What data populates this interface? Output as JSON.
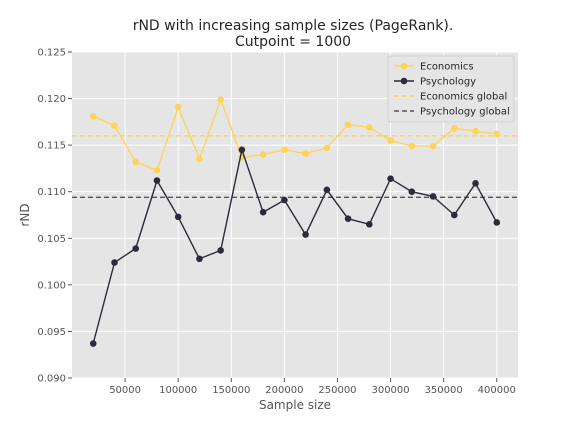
{
  "chart_data": {
    "type": "line",
    "title": "rND with increasing sample sizes (PageRank).",
    "subtitle": "Cutpoint = 1000",
    "xlabel": "Sample size",
    "ylabel": "rND",
    "x": [
      20000,
      40000,
      60000,
      80000,
      100000,
      120000,
      140000,
      160000,
      180000,
      200000,
      220000,
      240000,
      260000,
      280000,
      300000,
      320000,
      340000,
      360000,
      380000,
      400000
    ],
    "xlim": [
      0,
      420000
    ],
    "ylim": [
      0.09,
      0.125
    ],
    "xticks": [
      "50000",
      "100000",
      "150000",
      "200000",
      "250000",
      "300000",
      "350000",
      "400000"
    ],
    "xtick_values": [
      50000,
      100000,
      150000,
      200000,
      250000,
      300000,
      350000,
      400000
    ],
    "yticks": [
      "0.090",
      "0.095",
      "0.100",
      "0.105",
      "0.110",
      "0.115",
      "0.120",
      "0.125"
    ],
    "ytick_values": [
      0.09,
      0.095,
      0.1,
      0.105,
      0.11,
      0.115,
      0.12,
      0.125
    ],
    "grid": true,
    "legend_position": "top-right",
    "series": [
      {
        "name": "Economics",
        "color": "#FFD35A",
        "values": [
          0.1181,
          0.1171,
          0.1132,
          0.1123,
          0.1191,
          0.1135,
          0.1199,
          0.1137,
          0.114,
          0.1145,
          0.1141,
          0.1147,
          0.1172,
          0.1169,
          0.1155,
          0.1149,
          0.1149,
          0.1168,
          0.1165,
          0.1162
        ]
      },
      {
        "name": "Psychology",
        "color": "#2F2A3A",
        "values": [
          0.0937,
          0.1024,
          0.1039,
          0.1112,
          0.1073,
          0.1028,
          0.1037,
          0.1145,
          0.1078,
          0.1091,
          0.1054,
          0.1102,
          0.1071,
          0.1065,
          0.1114,
          0.11,
          0.1095,
          0.1075,
          0.1109,
          0.1067
        ]
      }
    ],
    "reference_lines": [
      {
        "name": "Economics global",
        "value": 0.116,
        "color": "#FFD35A"
      },
      {
        "name": "Psychology global",
        "value": 0.1094,
        "color": "#555555"
      }
    ]
  }
}
